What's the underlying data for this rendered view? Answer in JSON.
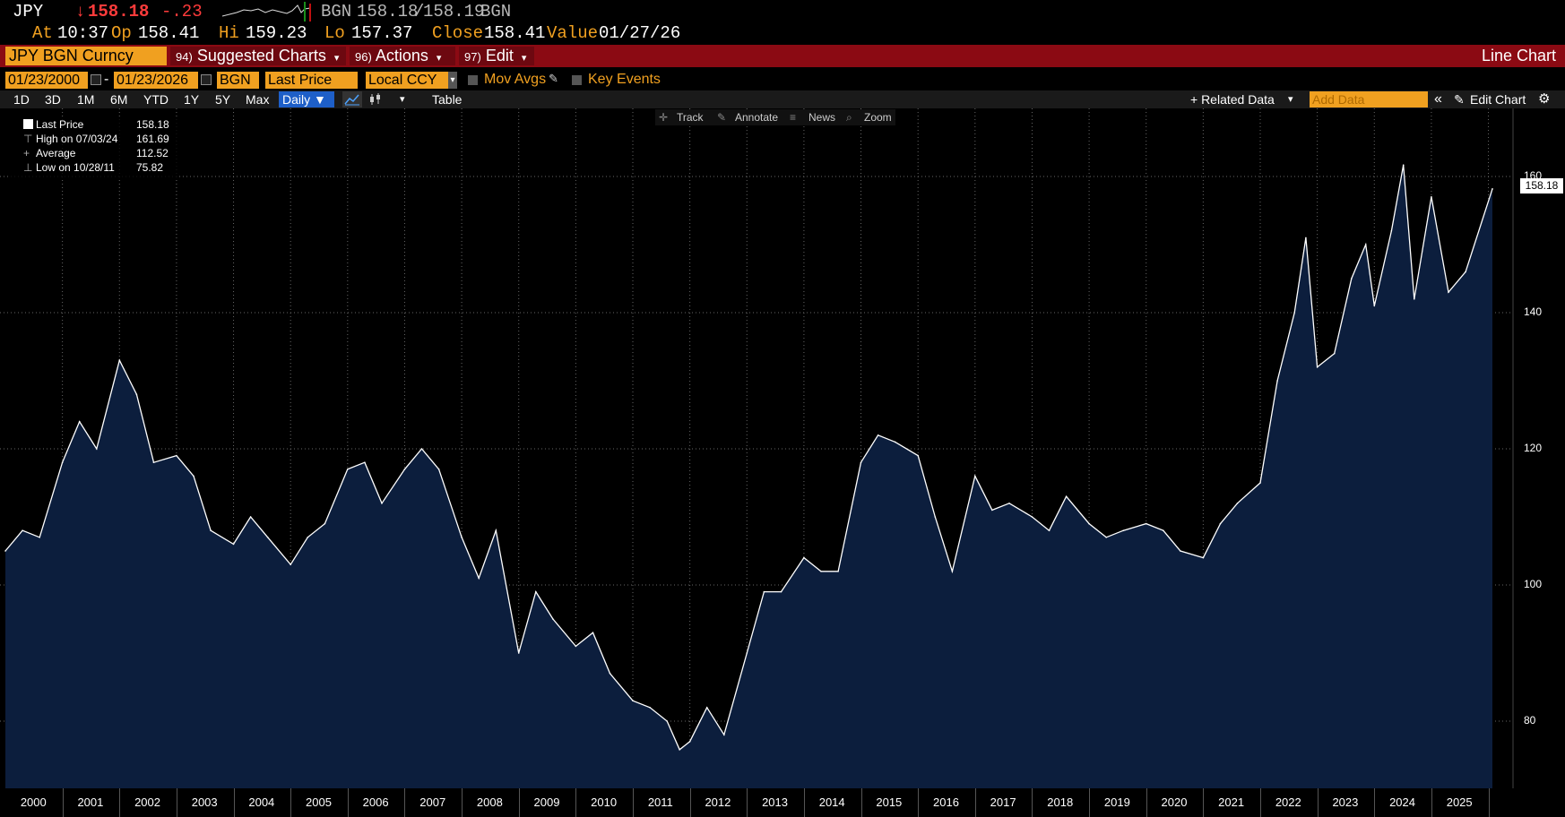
{
  "header": {
    "ticker": "JPY",
    "arrow": "↓",
    "last": "158.18",
    "change": "-.23",
    "quote_src": "BGN",
    "bid": "158.18",
    "ask": "158.19",
    "quote_src2": "BGN",
    "at_label": "At",
    "at_time": "10:37",
    "op_label": "Op",
    "op_value": "158.41",
    "hi_label": "Hi",
    "hi_value": "159.23",
    "lo_label": "Lo",
    "lo_value": "157.37",
    "close_label": "Close",
    "close_value": "158.41",
    "value_label": "Value",
    "value_date": "01/27/26"
  },
  "menubar": {
    "security": "JPY BGN Curncy",
    "items": [
      {
        "num": "94)",
        "label": "Suggested Charts"
      },
      {
        "num": "96)",
        "label": "Actions"
      },
      {
        "num": "97)",
        "label": "Edit"
      }
    ],
    "right_label": "Line Chart"
  },
  "settings": {
    "start_date": "01/23/2000",
    "end_date": "01/23/2026",
    "source": "BGN",
    "field": "Last Price",
    "currency": "Local CCY",
    "mov_avgs": "Mov Avgs",
    "key_events": "Key Events"
  },
  "toolbar": {
    "periods": [
      "1D",
      "3D",
      "1M",
      "6M",
      "YTD",
      "1Y",
      "5Y",
      "Max"
    ],
    "frequency": "Daily ▼",
    "table": "Table",
    "related_data": "+ Related Data",
    "add_data_placeholder": "Add Data",
    "edit_chart": "Edit Chart"
  },
  "chart_controls": [
    "Track",
    "Annotate",
    "News",
    "Zoom"
  ],
  "legend": {
    "rows": [
      {
        "label": "Last Price",
        "value": "158.18"
      },
      {
        "label": "High on 07/03/24",
        "value": "161.69"
      },
      {
        "label": "Average",
        "value": "112.52"
      },
      {
        "label": "Low on 10/28/11",
        "value": "75.82"
      }
    ]
  },
  "colors": {
    "accent": "#f0a020",
    "menu_bar": "#8b0a13",
    "area_fill": "#0c1e3d",
    "line": "#ffffff",
    "negative": "#ff3b3b"
  },
  "chart_data": {
    "type": "area",
    "x": [
      2000.0,
      2000.3,
      2000.6,
      2001.0,
      2001.3,
      2001.6,
      2002.0,
      2002.3,
      2002.6,
      2003.0,
      2003.3,
      2003.6,
      2004.0,
      2004.3,
      2004.6,
      2005.0,
      2005.3,
      2005.6,
      2006.0,
      2006.3,
      2006.6,
      2007.0,
      2007.3,
      2007.6,
      2008.0,
      2008.3,
      2008.6,
      2009.0,
      2009.3,
      2009.6,
      2010.0,
      2010.3,
      2010.6,
      2011.0,
      2011.3,
      2011.6,
      2011.82,
      2012.0,
      2012.3,
      2012.6,
      2013.0,
      2013.3,
      2013.6,
      2014.0,
      2014.3,
      2014.6,
      2015.0,
      2015.3,
      2015.6,
      2016.0,
      2016.3,
      2016.6,
      2017.0,
      2017.3,
      2017.6,
      2018.0,
      2018.3,
      2018.6,
      2019.0,
      2019.3,
      2019.6,
      2020.0,
      2020.3,
      2020.6,
      2021.0,
      2021.3,
      2021.6,
      2022.0,
      2022.3,
      2022.6,
      2022.8,
      2023.0,
      2023.3,
      2023.6,
      2023.85,
      2024.0,
      2024.3,
      2024.51,
      2024.7,
      2025.0,
      2025.3,
      2025.6,
      2026.07
    ],
    "values": [
      105,
      108,
      107,
      118,
      124,
      120,
      133,
      128,
      118,
      119,
      116,
      108,
      106,
      110,
      107,
      103,
      107,
      109,
      117,
      118,
      112,
      117,
      120,
      117,
      107,
      101,
      108,
      90,
      99,
      95,
      91,
      93,
      87,
      83,
      82,
      80,
      75.82,
      77,
      82,
      78,
      90,
      99,
      99,
      104,
      102,
      102,
      118,
      122,
      121,
      119,
      110,
      102,
      116,
      111,
      112,
      110,
      108,
      113,
      109,
      107,
      108,
      109,
      108,
      105,
      104,
      109,
      112,
      115,
      130,
      140,
      151,
      132,
      134,
      145,
      150,
      141,
      152,
      161.69,
      142,
      157,
      143,
      146,
      158.18
    ],
    "y_ticks": [
      80,
      100,
      120,
      140,
      160
    ],
    "ylim": [
      70,
      170
    ],
    "x_tick_labels": [
      "2000",
      "2001",
      "2002",
      "2003",
      "2004",
      "2005",
      "2006",
      "2007",
      "2008",
      "2009",
      "2010",
      "2011",
      "2012",
      "2013",
      "2014",
      "2015",
      "2016",
      "2017",
      "2018",
      "2019",
      "2020",
      "2021",
      "2022",
      "2023",
      "2024",
      "2025"
    ],
    "xlim": [
      2000.0,
      2026.07
    ],
    "last_value_label": "158.18",
    "grid": true
  }
}
